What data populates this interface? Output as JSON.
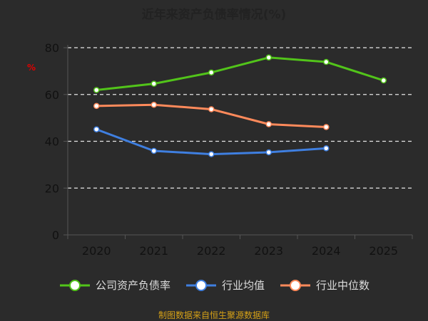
{
  "chart_data": {
    "type": "line",
    "title": "近年来资产负债率情况(%)",
    "ylabel": "%",
    "categories": [
      "2020",
      "2021",
      "2022",
      "2023",
      "2024",
      "2025"
    ],
    "ylim": [
      0,
      80
    ],
    "yticks": [
      0,
      20,
      40,
      60,
      80
    ],
    "grid": true,
    "legend_position": "bottom",
    "series": [
      {
        "name": "公司资产负债率",
        "color": "#52c41a",
        "values": [
          61.9,
          64.6,
          69.4,
          75.8,
          73.9,
          66.0
        ]
      },
      {
        "name": "行业均值",
        "color": "#3f7fe0",
        "values": [
          45.1,
          35.9,
          34.5,
          35.3,
          37.0,
          null
        ]
      },
      {
        "name": "行业中位数",
        "color": "#ff8a5b",
        "values": [
          55.1,
          55.6,
          53.7,
          47.3,
          46.1,
          null
        ]
      }
    ],
    "source": "制图数据来自恒生聚源数据库"
  }
}
